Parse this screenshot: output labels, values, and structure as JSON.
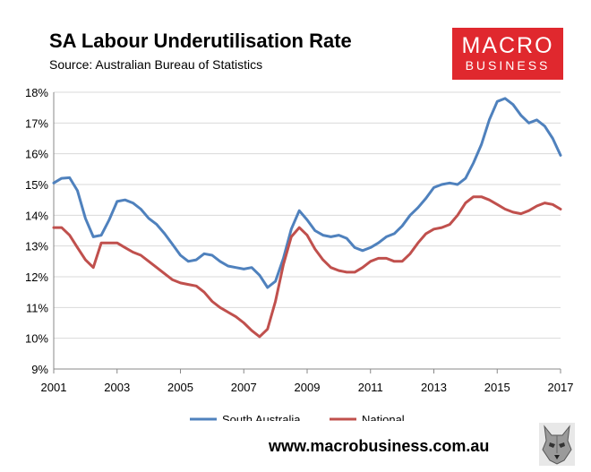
{
  "header": {
    "title": "SA Labour Underutilisation Rate",
    "subtitle": "Source: Australian Bureau of Statistics"
  },
  "logo": {
    "line1": "MACRO",
    "line2": "BUSINESS"
  },
  "footer": {
    "url": "www.macrobusiness.com.au",
    "icon": "wolf-logo-icon"
  },
  "colors": {
    "sa": "#4f81bd",
    "national": "#c0504d",
    "logo_bg": "#e0282e"
  },
  "chart_data": {
    "type": "line",
    "title": "SA Labour Underutilisation Rate",
    "ylim": [
      9,
      18
    ],
    "xlim": [
      2001,
      2017
    ],
    "y_ticks": [
      "9%",
      "10%",
      "11%",
      "12%",
      "13%",
      "14%",
      "15%",
      "16%",
      "17%",
      "18%"
    ],
    "x_ticks": [
      "2001",
      "2003",
      "2005",
      "2007",
      "2009",
      "2011",
      "2013",
      "2015",
      "2017"
    ],
    "grid": "horizontal",
    "legend": "bottom",
    "series": [
      {
        "name": "South Australia",
        "color": "#4f81bd",
        "x": [
          2001.0,
          2001.25,
          2001.5,
          2001.75,
          2002.0,
          2002.25,
          2002.5,
          2002.75,
          2003.0,
          2003.25,
          2003.5,
          2003.75,
          2004.0,
          2004.25,
          2004.5,
          2004.75,
          2005.0,
          2005.25,
          2005.5,
          2005.75,
          2006.0,
          2006.25,
          2006.5,
          2006.75,
          2007.0,
          2007.25,
          2007.5,
          2007.75,
          2008.0,
          2008.25,
          2008.5,
          2008.75,
          2009.0,
          2009.25,
          2009.5,
          2009.75,
          2010.0,
          2010.25,
          2010.5,
          2010.75,
          2011.0,
          2011.25,
          2011.5,
          2011.75,
          2012.0,
          2012.25,
          2012.5,
          2012.75,
          2013.0,
          2013.25,
          2013.5,
          2013.75,
          2014.0,
          2014.25,
          2014.5,
          2014.75,
          2015.0,
          2015.25,
          2015.5,
          2015.75,
          2016.0,
          2016.25,
          2016.5,
          2016.75,
          2017.0
        ],
        "values": [
          15.05,
          15.2,
          15.22,
          14.8,
          13.9,
          13.3,
          13.35,
          13.85,
          14.45,
          14.5,
          14.4,
          14.2,
          13.9,
          13.7,
          13.4,
          13.05,
          12.7,
          12.5,
          12.55,
          12.75,
          12.7,
          12.5,
          12.35,
          12.3,
          12.25,
          12.3,
          12.05,
          11.65,
          11.85,
          12.6,
          13.55,
          14.15,
          13.85,
          13.5,
          13.35,
          13.3,
          13.35,
          13.25,
          12.95,
          12.85,
          12.95,
          13.1,
          13.3,
          13.4,
          13.65,
          14.0,
          14.25,
          14.55,
          14.9,
          15.0,
          15.05,
          15.0,
          15.2,
          15.7,
          16.3,
          17.1,
          17.7,
          17.8,
          17.6,
          17.25,
          17.0,
          17.1,
          16.9,
          16.5,
          15.95
        ]
      },
      {
        "name": "National",
        "color": "#c0504d",
        "x": [
          2001.0,
          2001.25,
          2001.5,
          2001.75,
          2002.0,
          2002.25,
          2002.5,
          2002.75,
          2003.0,
          2003.25,
          2003.5,
          2003.75,
          2004.0,
          2004.25,
          2004.5,
          2004.75,
          2005.0,
          2005.25,
          2005.5,
          2005.75,
          2006.0,
          2006.25,
          2006.5,
          2006.75,
          2007.0,
          2007.25,
          2007.5,
          2007.75,
          2008.0,
          2008.25,
          2008.5,
          2008.75,
          2009.0,
          2009.25,
          2009.5,
          2009.75,
          2010.0,
          2010.25,
          2010.5,
          2010.75,
          2011.0,
          2011.25,
          2011.5,
          2011.75,
          2012.0,
          2012.25,
          2012.5,
          2012.75,
          2013.0,
          2013.25,
          2013.5,
          2013.75,
          2014.0,
          2014.25,
          2014.5,
          2014.75,
          2015.0,
          2015.25,
          2015.5,
          2015.75,
          2016.0,
          2016.25,
          2016.5,
          2016.75,
          2017.0
        ],
        "values": [
          13.6,
          13.6,
          13.35,
          12.95,
          12.55,
          12.3,
          13.1,
          13.1,
          13.1,
          12.95,
          12.8,
          12.7,
          12.5,
          12.3,
          12.1,
          11.9,
          11.8,
          11.75,
          11.7,
          11.5,
          11.2,
          11.0,
          10.85,
          10.7,
          10.5,
          10.25,
          10.05,
          10.3,
          11.2,
          12.4,
          13.3,
          13.6,
          13.35,
          12.9,
          12.55,
          12.3,
          12.2,
          12.15,
          12.15,
          12.3,
          12.5,
          12.6,
          12.6,
          12.5,
          12.5,
          12.75,
          13.1,
          13.4,
          13.55,
          13.6,
          13.7,
          14.0,
          14.4,
          14.6,
          14.6,
          14.5,
          14.35,
          14.2,
          14.1,
          14.05,
          14.15,
          14.3,
          14.4,
          14.35,
          14.2
        ]
      }
    ]
  }
}
